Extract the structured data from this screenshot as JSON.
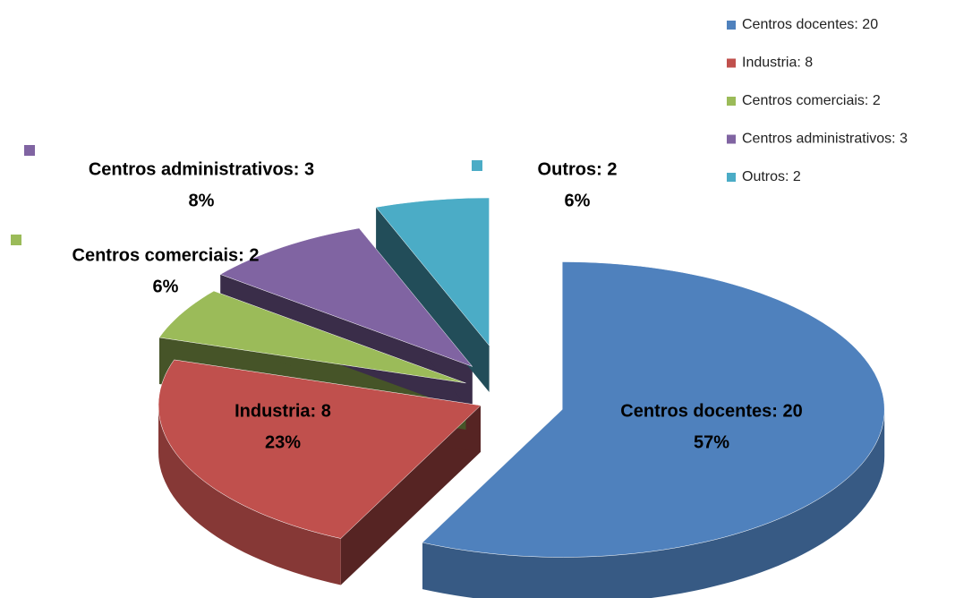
{
  "chart_data": {
    "type": "pie3d",
    "labels": [
      "Centros docentes: 20",
      "Industria: 8",
      "Centros comerciais: 2",
      "Centros administrativos: 3",
      "Outros: 2"
    ],
    "values": [
      20,
      8,
      2,
      3,
      2
    ],
    "percent_labels": [
      "57%",
      "23%",
      "6%",
      "8%",
      "6%"
    ],
    "colors": [
      "#4f81bd",
      "#c0504d",
      "#9bbb59",
      "#8064a2",
      "#4bacc6"
    ],
    "legend": "top-right"
  }
}
